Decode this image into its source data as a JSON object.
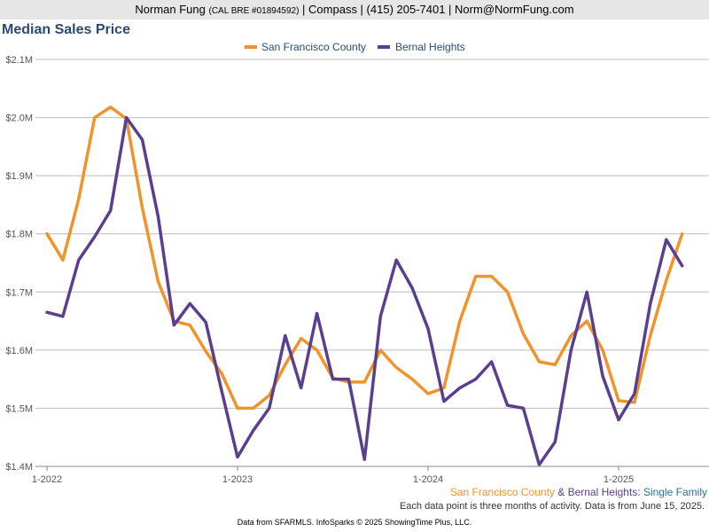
{
  "header": {
    "name": "Norman Fung",
    "license": "(CAL BRE #01894592)",
    "rest": "| Compass | (415) 205-7401 | Norm@NormFung.com"
  },
  "colors": {
    "sf": "#f0932b",
    "bernal": "#5b3f8f",
    "title": "#2b4a72",
    "grid": "#bbbbbb"
  },
  "footer": {
    "series_sf": "San Francisco County",
    "amp": " & ",
    "series_bernal": "Bernal Heights",
    "type": ": Single Family",
    "note": "Each data point is three months of activity. Data is from June 15, 2025.",
    "credit": "Data from SFARMLS. InfoSparks © 2025 ShowingTime Plus, LLC."
  },
  "chart_data": {
    "type": "line",
    "title": "Median Sales Price",
    "legend_position": "top-center",
    "grid": true,
    "x_tick_labels": [
      "1-2022",
      "1-2023",
      "1-2024",
      "1-2025"
    ],
    "x_tick_index": [
      0,
      12,
      24,
      36
    ],
    "y_tick_labels": [
      "$1.4M",
      "$1.5M",
      "$1.6M",
      "$1.7M",
      "$1.8M",
      "$1.9M",
      "$2.0M",
      "$2.1M"
    ],
    "ylim": [
      1400000,
      2100000
    ],
    "x_count": 41,
    "series": [
      {
        "name": "San Francisco County",
        "values": [
          1800000,
          1755000,
          1860000,
          2000000,
          2018000,
          1998000,
          1845000,
          1718000,
          1650000,
          1643000,
          1598000,
          1560000,
          1500000,
          1500000,
          1522000,
          1575000,
          1620000,
          1600000,
          1552000,
          1545000,
          1545000,
          1600000,
          1570000,
          1550000,
          1525000,
          1535000,
          1650000,
          1727000,
          1727000,
          1700000,
          1628000,
          1580000,
          1575000,
          1625000,
          1650000,
          1600000,
          1513000,
          1510000,
          1625000,
          1720000,
          1800000
        ]
      },
      {
        "name": "Bernal Heights",
        "values": [
          1665000,
          1658000,
          1755000,
          1795000,
          1840000,
          2000000,
          1962000,
          1830000,
          1643000,
          1680000,
          1648000,
          1530000,
          1416000,
          1462000,
          1500000,
          1625000,
          1535000,
          1663000,
          1550000,
          1550000,
          1412000,
          1658000,
          1755000,
          1707000,
          1637000,
          1512000,
          1535000,
          1550000,
          1580000,
          1505000,
          1500000,
          1403000,
          1442000,
          1600000,
          1700000,
          1555000,
          1480000,
          1525000,
          1680000,
          1790000,
          1745000
        ]
      }
    ]
  }
}
